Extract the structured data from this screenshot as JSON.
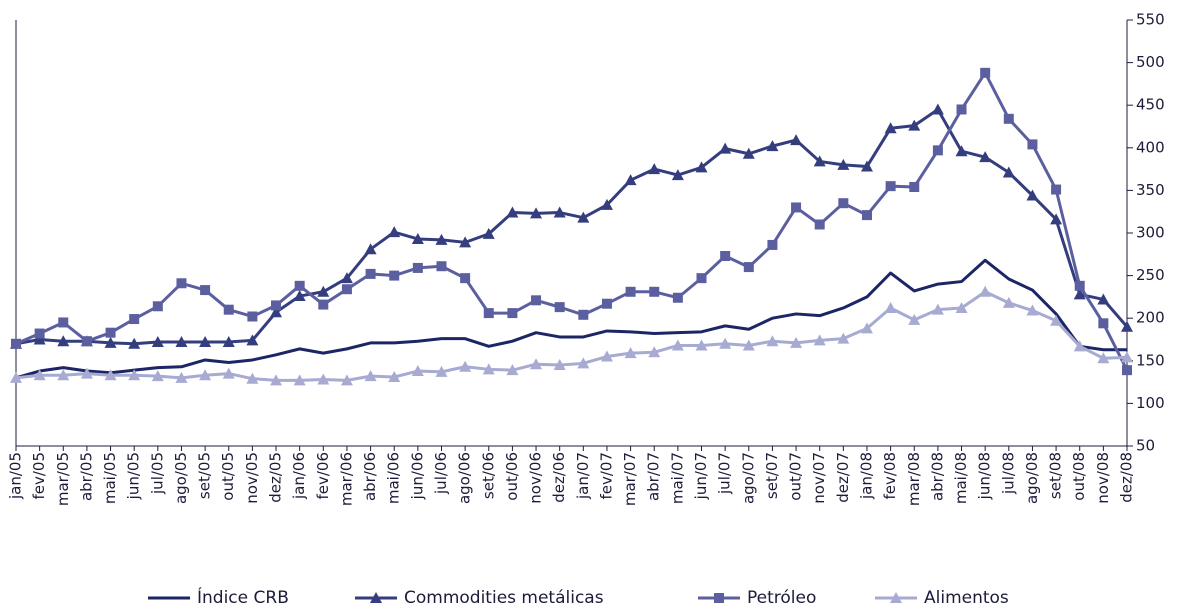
{
  "chart_data": {
    "type": "line",
    "categories": [
      "jan/05",
      "fev/05",
      "mar/05",
      "abr/05",
      "mai/05",
      "jun/05",
      "jul/05",
      "ago/05",
      "set/05",
      "out/05",
      "nov/05",
      "dez/05",
      "jan/06",
      "fev/06",
      "mar/06",
      "abr/06",
      "mai/06",
      "jun/06",
      "jul/06",
      "ago/06",
      "set/06",
      "out/06",
      "nov/06",
      "dez/06",
      "jan/07",
      "fev/07",
      "mar/07",
      "abr/07",
      "mai/07",
      "jun/07",
      "jul/07",
      "ago/07",
      "set/07",
      "out/07",
      "nov/07",
      "dez/07",
      "jan/08",
      "fev/08",
      "mar/08",
      "abr/08",
      "mai/08",
      "jun/08",
      "jul/08",
      "ago/08",
      "set/08",
      "out/08",
      "nov/08",
      "dez/08"
    ],
    "series": [
      {
        "name": "Índice CRB",
        "color": "#1c2566",
        "marker": "none",
        "values": [
          130,
          138,
          142,
          138,
          136,
          139,
          142,
          143,
          151,
          148,
          151,
          157,
          164,
          159,
          164,
          171,
          171,
          173,
          176,
          176,
          167,
          173,
          183,
          178,
          178,
          185,
          184,
          182,
          183,
          184,
          191,
          187,
          200,
          205,
          203,
          212,
          225,
          253,
          232,
          240,
          243,
          268,
          246,
          233,
          205,
          167,
          163,
          163
        ]
      },
      {
        "name": "Commodities metálicas",
        "color": "#343d7d",
        "marker": "triangle",
        "values": [
          170,
          175,
          173,
          173,
          171,
          170,
          172,
          172,
          172,
          172,
          174,
          207,
          226,
          231,
          247,
          281,
          301,
          293,
          292,
          289,
          299,
          324,
          323,
          324,
          318,
          333,
          362,
          375,
          368,
          377,
          399,
          393,
          402,
          409,
          384,
          380,
          378,
          423,
          426,
          445,
          396,
          389,
          371,
          344,
          316,
          228,
          222,
          190
        ]
      },
      {
        "name": "Petróleo",
        "color": "#5c5f9f",
        "marker": "square",
        "values": [
          170,
          182,
          195,
          173,
          183,
          199,
          214,
          241,
          233,
          210,
          202,
          215,
          238,
          216,
          234,
          252,
          250,
          259,
          261,
          247,
          206,
          206,
          221,
          213,
          204,
          217,
          231,
          231,
          224,
          247,
          273,
          260,
          286,
          330,
          310,
          335,
          321,
          355,
          354,
          397,
          445,
          488,
          434,
          404,
          351,
          238,
          194,
          139
        ]
      },
      {
        "name": "Alimentos",
        "color": "#a7aad1",
        "marker": "triangle",
        "values": [
          130,
          133,
          133,
          135,
          133,
          133,
          132,
          130,
          133,
          135,
          129,
          127,
          127,
          128,
          127,
          132,
          131,
          138,
          137,
          143,
          140,
          139,
          146,
          145,
          147,
          155,
          159,
          160,
          168,
          168,
          170,
          168,
          173,
          171,
          174,
          176,
          188,
          212,
          198,
          210,
          212,
          231,
          218,
          209,
          197,
          167,
          153,
          154
        ]
      }
    ],
    "ylim": [
      50,
      550
    ],
    "yticks": [
      50,
      100,
      150,
      200,
      250,
      300,
      350,
      400,
      450,
      500,
      550
    ],
    "y_axis_side": "right",
    "grid": false,
    "legend": "bottom"
  }
}
